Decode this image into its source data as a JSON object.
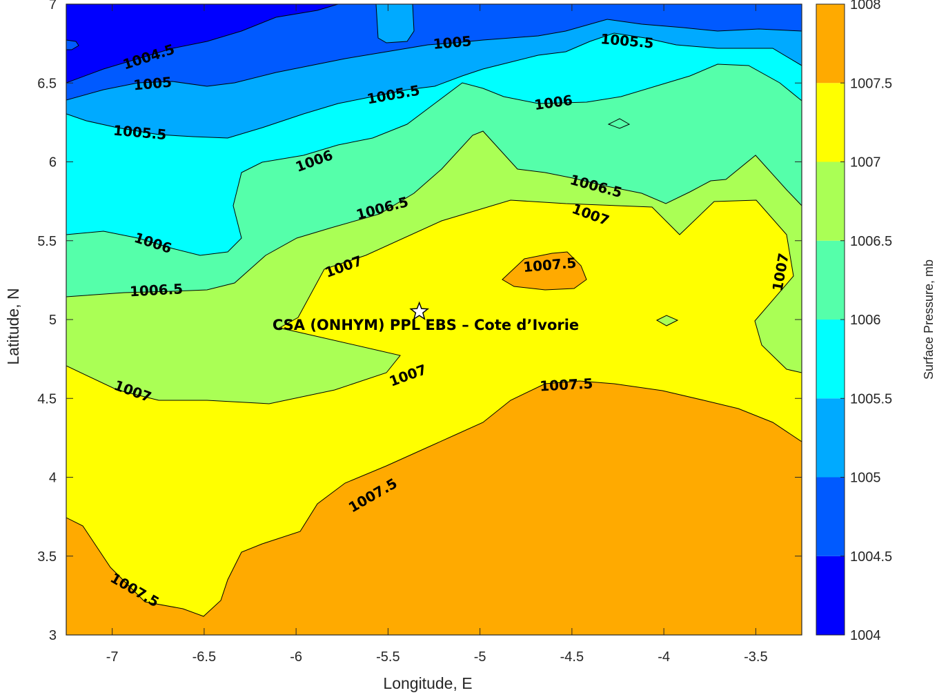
{
  "chart_data": {
    "type": "contour",
    "xlabel": "Longitude, E",
    "ylabel": "Latitude, N",
    "colorbar_label": "Surface Pressure, mb",
    "xlim": [
      -7.25,
      -3.25
    ],
    "ylim": [
      3,
      7
    ],
    "x_ticks": [
      "-7",
      "-6.5",
      "-6",
      "-5.5",
      "-5",
      "-4.5",
      "-4",
      "-3.5"
    ],
    "y_ticks": [
      "3",
      "3.5",
      "4",
      "4.5",
      "5",
      "5.5",
      "6",
      "6.5",
      "7"
    ],
    "x_tick_values": [
      -7,
      -6.5,
      -6,
      -5.5,
      -5,
      -4.5,
      -4,
      -3.5
    ],
    "y_tick_values": [
      3,
      3.5,
      4,
      4.5,
      5,
      5.5,
      6,
      6.5,
      7
    ],
    "colorbar": {
      "range": [
        1004,
        1008
      ],
      "tick_labels": [
        "1004",
        "1004.5",
        "1005",
        "1005.5",
        "1006",
        "1006.5",
        "1007",
        "1007.5",
        "1008"
      ],
      "levels": [
        1004,
        1004.5,
        1005,
        1005.5,
        1006,
        1006.5,
        1007,
        1007.5,
        1008
      ],
      "colors": [
        "#0000FF",
        "#005AFF",
        "#00AAFF",
        "#00FFFF",
        "#55FFAA",
        "#AAFF55",
        "#FFFF00",
        "#FFAA00",
        "#FF5500"
      ]
    },
    "contour_labels": [
      {
        "text": "1004.5",
        "x": -6.8,
        "y": 6.66
      },
      {
        "text": "1005",
        "x": -6.78,
        "y": 6.49
      },
      {
        "text": "1005",
        "x": -5.15,
        "y": 6.75
      },
      {
        "text": "1005.5",
        "x": -4.2,
        "y": 6.76
      },
      {
        "text": "1005.5",
        "x": -6.85,
        "y": 6.18
      },
      {
        "text": "1005.5",
        "x": -5.47,
        "y": 6.42
      },
      {
        "text": "1006",
        "x": -4.6,
        "y": 6.37
      },
      {
        "text": "1006",
        "x": -5.9,
        "y": 6.0
      },
      {
        "text": "1006",
        "x": -6.78,
        "y": 5.48
      },
      {
        "text": "1006.5",
        "x": -5.53,
        "y": 5.7
      },
      {
        "text": "1006.5",
        "x": -4.37,
        "y": 5.84
      },
      {
        "text": "1006.5",
        "x": -6.76,
        "y": 5.18
      },
      {
        "text": "1007",
        "x": -5.74,
        "y": 5.33
      },
      {
        "text": "1007",
        "x": -4.4,
        "y": 5.66
      },
      {
        "text": "1007",
        "x": -3.36,
        "y": 5.3
      },
      {
        "text": "1007",
        "x": -5.39,
        "y": 4.64
      },
      {
        "text": "1007",
        "x": -6.89,
        "y": 4.54
      },
      {
        "text": "1007.5",
        "x": -4.62,
        "y": 5.34
      },
      {
        "text": "1007.5",
        "x": -4.53,
        "y": 4.58
      },
      {
        "text": "1007.5",
        "x": -5.58,
        "y": 3.88
      },
      {
        "text": "1007.5",
        "x": -6.88,
        "y": 3.28
      }
    ],
    "site": {
      "name": "CSA (ONHYM) PPL EBS  – Cote d’Ivorie",
      "x": -5.33,
      "y": 5.05
    }
  }
}
